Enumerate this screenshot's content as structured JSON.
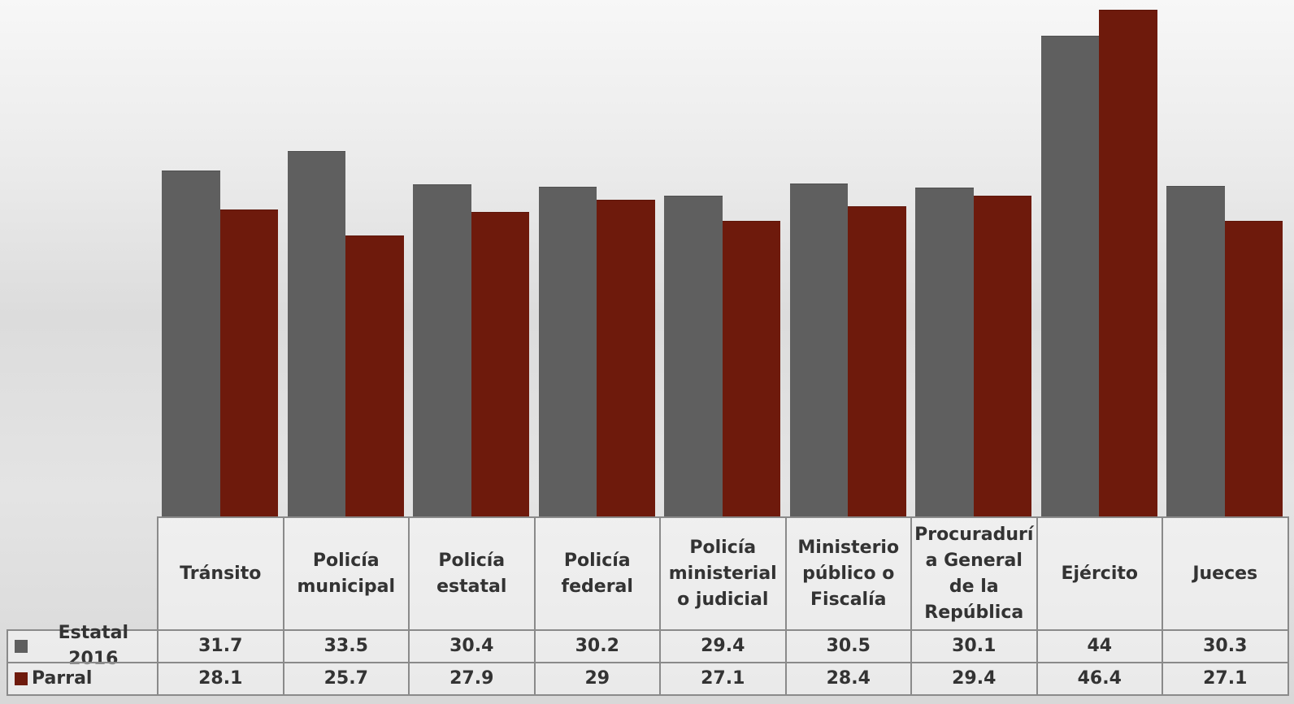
{
  "chart_data": {
    "type": "bar",
    "categories": [
      "Tránsito",
      "Policía municipal",
      "Policía estatal",
      "Policía federal",
      "Policía ministerial o judicial",
      "Ministerio público o Fiscalía",
      "Procuraduría General de la República",
      "Ejército",
      "Jueces"
    ],
    "series": [
      {
        "name": "Estatal 2016",
        "color": "#5f5f5f",
        "values": [
          31.7,
          33.5,
          30.4,
          30.2,
          29.4,
          30.5,
          30.1,
          44,
          30.3
        ]
      },
      {
        "name": "Parral",
        "color": "#6e1a0c",
        "values": [
          28.1,
          25.7,
          27.9,
          29,
          27.1,
          28.4,
          29.4,
          46.4,
          27.1
        ]
      }
    ],
    "ylim": [
      0,
      47.3
    ]
  }
}
